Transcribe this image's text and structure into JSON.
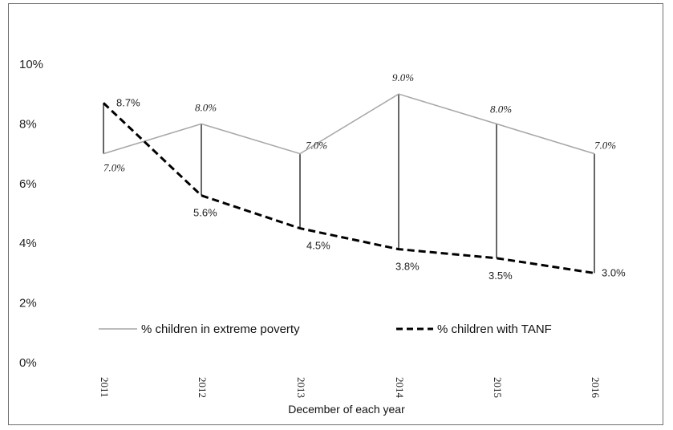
{
  "chart_data": {
    "type": "line",
    "title": "",
    "xlabel": "December of each year",
    "ylabel": "",
    "x": [
      "2011",
      "2012",
      "2013",
      "2014",
      "2015",
      "2016"
    ],
    "y_ticks": [
      "0%",
      "2%",
      "4%",
      "6%",
      "8%",
      "10%"
    ],
    "ylim": [
      0,
      10
    ],
    "grid": false,
    "legend_position": "bottom",
    "drop_lines": true,
    "series": [
      {
        "name": "% children in extreme poverty",
        "values": [
          7.0,
          8.0,
          7.0,
          9.0,
          8.0,
          7.0
        ],
        "labels": [
          "7.0%",
          "8.0%",
          "7.0%",
          "9.0%",
          "8.0%",
          "7.0%"
        ],
        "style": "solid",
        "color": "#a6a6a6"
      },
      {
        "name": "% children with TANF",
        "values": [
          8.7,
          5.6,
          4.5,
          3.8,
          3.5,
          3.0
        ],
        "labels": [
          "8.7%",
          "5.6%",
          "4.5%",
          "3.8%",
          "3.5%",
          "3.0%"
        ],
        "style": "dashed",
        "color": "#000000"
      }
    ]
  }
}
